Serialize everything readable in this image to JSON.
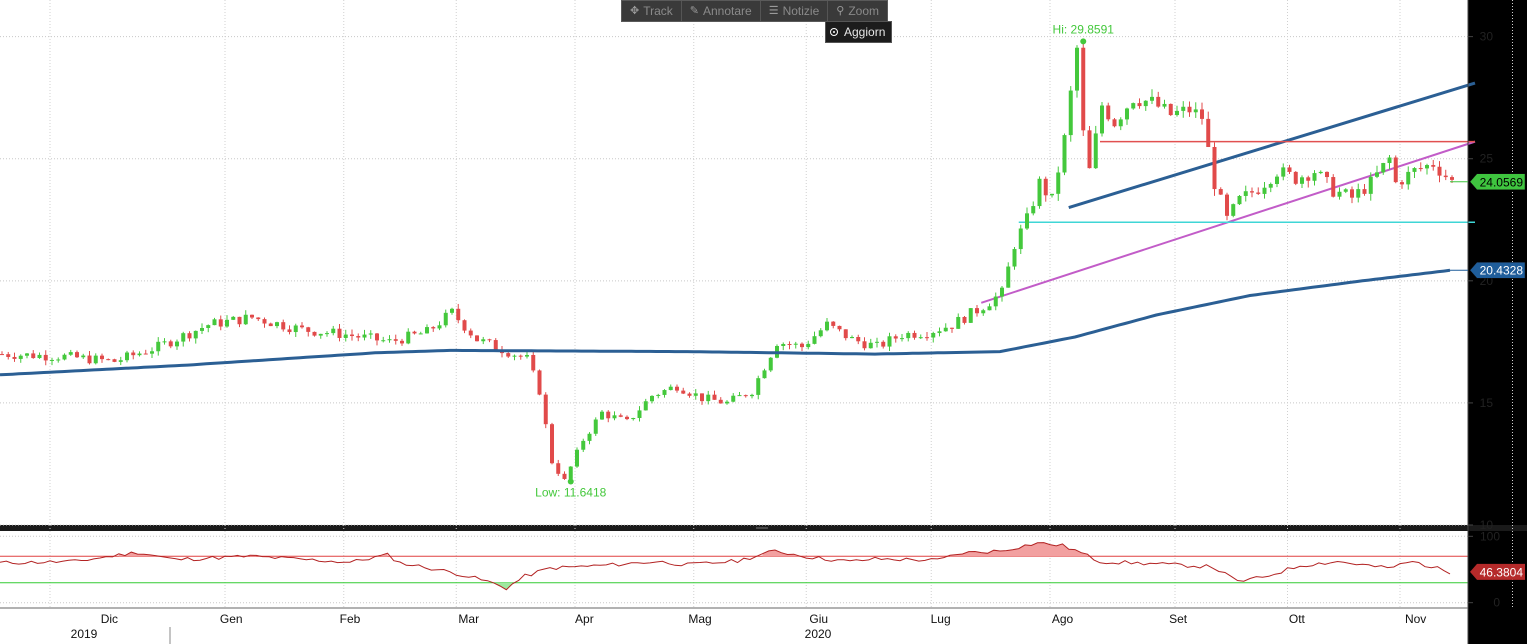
{
  "toolbar": {
    "items": [
      {
        "label": "Track",
        "icon": "move-icon"
      },
      {
        "label": "Annotare",
        "icon": "pencil-icon"
      },
      {
        "label": "Notizie",
        "icon": "news-icon"
      },
      {
        "label": "Zoom",
        "icon": "magnifier-icon"
      }
    ],
    "update_label": "Aggiorn"
  },
  "colors": {
    "bg": "#ffffff",
    "up": "#44c83c",
    "down": "#e14a4a",
    "ma": "#2b5f94",
    "trend_blue": "#2b5f94",
    "trend_magenta": "#c25cc8",
    "resistance": "#e15050",
    "support": "#3fd6d6",
    "rsi": "#b22222",
    "rsi_upper": "#e04040",
    "rsi_lower": "#33cc33",
    "price_tag": "#3fc53f",
    "ma_tag": "#1f5d9a",
    "rsi_tag": "#b52a2a"
  },
  "chart_data": {
    "type": "candlestick",
    "x_axis": {
      "months": [
        "Dic",
        "Gen",
        "Feb",
        "Mar",
        "Apr",
        "Mag",
        "Giu",
        "Lug",
        "Ago",
        "Set",
        "Ott",
        "Nov"
      ],
      "years": [
        "2019",
        "2020"
      ]
    },
    "price_axis": {
      "ylim": [
        10,
        31.5
      ],
      "ticks": [
        10,
        15,
        20,
        25,
        30
      ]
    },
    "rsi_axis": {
      "ylim": [
        -8,
        108
      ],
      "ticks": [
        0,
        100
      ],
      "upper": 70,
      "lower": 30
    },
    "annotations": {
      "high": "Hi: 29.8591",
      "low": "Low: 11.6418"
    },
    "last_price": "24.0569",
    "ma_last": "20.4328",
    "rsi_last": "46.3804",
    "ohlc_anchors": [
      [
        0,
        17.0
      ],
      [
        10,
        16.9
      ],
      [
        18,
        16.7
      ],
      [
        25,
        17.3
      ],
      [
        33,
        18.2
      ],
      [
        40,
        18.5
      ],
      [
        48,
        18.0
      ],
      [
        55,
        17.8
      ],
      [
        62,
        17.5
      ],
      [
        68,
        17.9
      ],
      [
        72,
        18.7
      ],
      [
        76,
        17.6
      ],
      [
        80,
        17.2
      ],
      [
        84,
        16.8
      ],
      [
        86,
        15.5
      ],
      [
        88,
        12.6
      ],
      [
        90,
        11.8
      ],
      [
        93,
        13.5
      ],
      [
        96,
        14.6
      ],
      [
        100,
        14.2
      ],
      [
        104,
        15.3
      ],
      [
        108,
        15.7
      ],
      [
        112,
        15.2
      ],
      [
        116,
        15.0
      ],
      [
        120,
        15.5
      ],
      [
        124,
        17.5
      ],
      [
        128,
        17.3
      ],
      [
        132,
        18.2
      ],
      [
        136,
        17.6
      ],
      [
        140,
        17.3
      ],
      [
        144,
        17.8
      ],
      [
        148,
        17.9
      ],
      [
        152,
        18.2
      ],
      [
        156,
        18.8
      ],
      [
        160,
        19.5
      ],
      [
        162,
        21.5
      ],
      [
        164,
        22.5
      ],
      [
        166,
        24.0
      ],
      [
        168,
        23.3
      ],
      [
        170,
        25.8
      ],
      [
        172,
        29.5
      ],
      [
        173,
        26.0
      ],
      [
        174,
        24.5
      ],
      [
        176,
        27.2
      ],
      [
        178,
        26.5
      ],
      [
        181,
        27.5
      ],
      [
        184,
        27.3
      ],
      [
        187,
        26.8
      ],
      [
        190,
        27.0
      ],
      [
        192,
        26.7
      ],
      [
        194,
        24.0
      ],
      [
        196,
        22.5
      ],
      [
        198,
        23.3
      ],
      [
        201,
        23.8
      ],
      [
        204,
        24.5
      ],
      [
        207,
        24.2
      ],
      [
        210,
        24.5
      ],
      [
        213,
        23.7
      ],
      [
        216,
        23.4
      ],
      [
        219,
        24.0
      ],
      [
        222,
        25.0
      ],
      [
        223,
        24.0
      ],
      [
        226,
        24.5
      ],
      [
        229,
        24.8
      ],
      [
        232,
        24.06
      ]
    ],
    "ma_anchors": [
      [
        0,
        16.15
      ],
      [
        30,
        16.55
      ],
      [
        60,
        17.05
      ],
      [
        72,
        17.15
      ],
      [
        110,
        17.1
      ],
      [
        140,
        17.0
      ],
      [
        160,
        17.1
      ],
      [
        172,
        17.7
      ],
      [
        185,
        18.6
      ],
      [
        200,
        19.4
      ],
      [
        218,
        20.0
      ],
      [
        232,
        20.43
      ]
    ],
    "rsi_anchors": [
      [
        0,
        60
      ],
      [
        12,
        62
      ],
      [
        22,
        76
      ],
      [
        28,
        65
      ],
      [
        40,
        70
      ],
      [
        56,
        61
      ],
      [
        62,
        72
      ],
      [
        64,
        60
      ],
      [
        70,
        50
      ],
      [
        74,
        42
      ],
      [
        78,
        32
      ],
      [
        81,
        22
      ],
      [
        84,
        40
      ],
      [
        88,
        52
      ],
      [
        98,
        57
      ],
      [
        105,
        62
      ],
      [
        110,
        57
      ],
      [
        118,
        63
      ],
      [
        124,
        78
      ],
      [
        130,
        68
      ],
      [
        136,
        62
      ],
      [
        140,
        66
      ],
      [
        150,
        64
      ],
      [
        154,
        75
      ],
      [
        160,
        78
      ],
      [
        166,
        90
      ],
      [
        170,
        86
      ],
      [
        172,
        79
      ],
      [
        176,
        62
      ],
      [
        186,
        58
      ],
      [
        194,
        54
      ],
      [
        198,
        32
      ],
      [
        202,
        38
      ],
      [
        208,
        56
      ],
      [
        214,
        62
      ],
      [
        222,
        52
      ],
      [
        226,
        62
      ],
      [
        232,
        46.38
      ]
    ],
    "trendlines": [
      {
        "name": "upper-channel",
        "from": [
          171,
          23.0
        ],
        "to": [
          236,
          28.1
        ]
      },
      {
        "name": "lower-channel",
        "from": [
          157,
          19.1
        ],
        "to": [
          236,
          25.7
        ]
      },
      {
        "name": "resistance",
        "from": [
          176,
          25.7
        ],
        "to": [
          236,
          25.7
        ]
      },
      {
        "name": "support",
        "from": [
          163,
          22.4
        ],
        "to": [
          236,
          22.4
        ]
      }
    ]
  }
}
